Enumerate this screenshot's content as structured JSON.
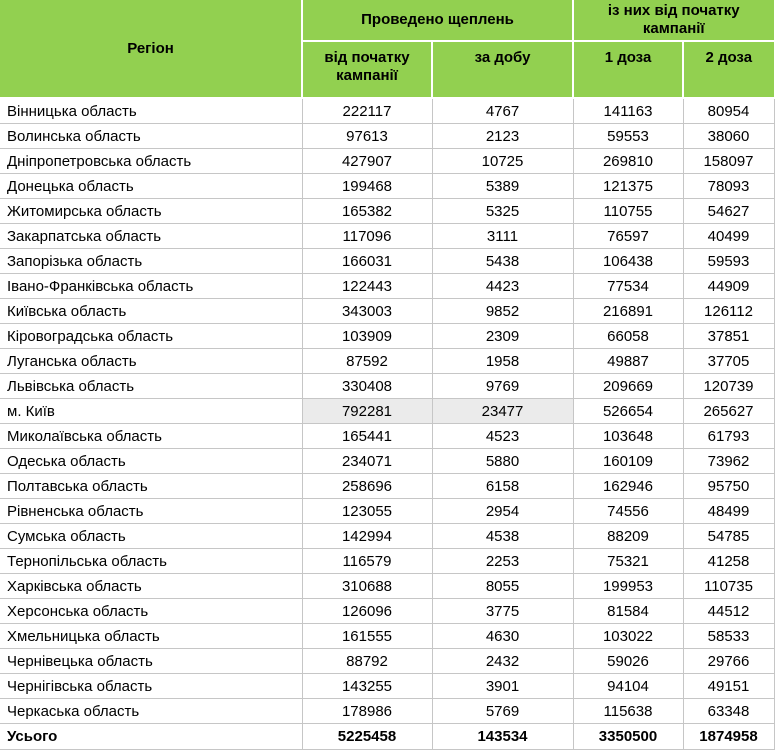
{
  "colors": {
    "header_bg": "#92d050",
    "highlight_bg": "#ebebeb"
  },
  "table": {
    "headers": {
      "region": "Регіон",
      "group_performed": "Проведено щеплень",
      "group_since_start": "із них від початку кампанії",
      "sub": [
        "від початку кампанії",
        "за добу",
        "1 доза",
        "2 доза"
      ]
    },
    "rows": [
      {
        "region": "Вінницька область",
        "values": [
          222117,
          4767,
          141163,
          80954
        ]
      },
      {
        "region": "Волинська область",
        "values": [
          97613,
          2123,
          59553,
          38060
        ]
      },
      {
        "region": "Дніпропетровська область",
        "values": [
          427907,
          10725,
          269810,
          158097
        ]
      },
      {
        "region": "Донецька область",
        "values": [
          199468,
          5389,
          121375,
          78093
        ]
      },
      {
        "region": "Житомирська область",
        "values": [
          165382,
          5325,
          110755,
          54627
        ]
      },
      {
        "region": "Закарпатська область",
        "values": [
          117096,
          3111,
          76597,
          40499
        ]
      },
      {
        "region": "Запорізька область",
        "values": [
          166031,
          5438,
          106438,
          59593
        ]
      },
      {
        "region": "Івано-Франківська область",
        "values": [
          122443,
          4423,
          77534,
          44909
        ]
      },
      {
        "region": "Київська область",
        "values": [
          343003,
          9852,
          216891,
          126112
        ]
      },
      {
        "region": "Кіровоградська область",
        "values": [
          103909,
          2309,
          66058,
          37851
        ]
      },
      {
        "region": "Луганська область",
        "values": [
          87592,
          1958,
          49887,
          37705
        ]
      },
      {
        "region": "Львівська область",
        "values": [
          330408,
          9769,
          209669,
          120739
        ]
      },
      {
        "region": "м. Київ",
        "values": [
          792281,
          23477,
          526654,
          265627
        ],
        "highlight": true
      },
      {
        "region": "Миколаївська область",
        "values": [
          165441,
          4523,
          103648,
          61793
        ]
      },
      {
        "region": "Одеська область",
        "values": [
          234071,
          5880,
          160109,
          73962
        ]
      },
      {
        "region": "Полтавська область",
        "values": [
          258696,
          6158,
          162946,
          95750
        ]
      },
      {
        "region": "Рівненська область",
        "values": [
          123055,
          2954,
          74556,
          48499
        ]
      },
      {
        "region": "Сумська область",
        "values": [
          142994,
          4538,
          88209,
          54785
        ]
      },
      {
        "region": "Тернопільська область",
        "values": [
          116579,
          2253,
          75321,
          41258
        ]
      },
      {
        "region": "Харківська область",
        "values": [
          310688,
          8055,
          199953,
          110735
        ]
      },
      {
        "region": "Херсонська область",
        "values": [
          126096,
          3775,
          81584,
          44512
        ]
      },
      {
        "region": "Хмельницька область",
        "values": [
          161555,
          4630,
          103022,
          58533
        ]
      },
      {
        "region": "Чернівецька область",
        "values": [
          88792,
          2432,
          59026,
          29766
        ]
      },
      {
        "region": "Чернігівська область",
        "values": [
          143255,
          3901,
          94104,
          49151
        ]
      },
      {
        "region": "Черкаська область",
        "values": [
          178986,
          5769,
          115638,
          63348
        ]
      }
    ],
    "total": {
      "label": "Усього",
      "values": [
        5225458,
        143534,
        3350500,
        1874958
      ]
    }
  }
}
